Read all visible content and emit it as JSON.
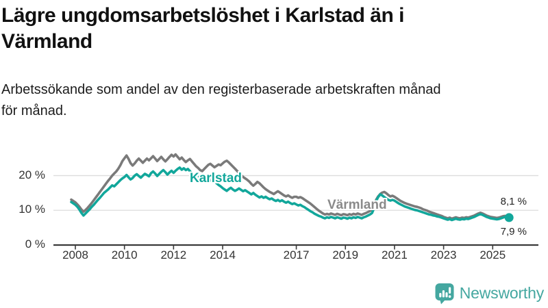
{
  "title": "Lägre ungdomsarbetslöshet i Karlstad än i\nVärmland",
  "subtitle": "Arbetssökande som andel av den registerbaserade arbetskraften månad\nför månad.",
  "branding": {
    "logo_text": "Newsworthy",
    "logo_color": "#44a7a0"
  },
  "colors": {
    "karlstad_line": "#12a79b",
    "varmland_line": "#7a7a7a",
    "varmland_label": "#8a8a8a",
    "axis": "#3a3a3a",
    "gridline": "#dcdcdc",
    "text": "#111111"
  },
  "chart_data": {
    "type": "line",
    "title": "Lägre ungdomsarbetslöshet i Karlstad än i Värmland",
    "subtitle": "Arbetssökande som andel av den registerbaserade arbetskraften månad för månad.",
    "unit": "%",
    "grid": "horizontal",
    "x_start": {
      "year": 2007,
      "month": 11
    },
    "x_end": {
      "year": 2025,
      "month": 9
    },
    "x_axis": {
      "ticks": [
        2008,
        2010,
        2012,
        2014,
        2017,
        2019,
        2021,
        2023,
        2025
      ]
    },
    "y_axis": {
      "range": [
        0,
        28
      ],
      "ticks": [
        {
          "value": 0,
          "label": "0 %"
        },
        {
          "value": 10,
          "label": "10 %"
        },
        {
          "value": 20,
          "label": "20 %"
        }
      ]
    },
    "series": [
      {
        "name": "Karlstad",
        "color": "#12a79b",
        "end_label": "7,9 %",
        "last_value": 7.9,
        "values": [
          12.4,
          12.0,
          11.6,
          11.0,
          10.2,
          9.2,
          8.5,
          9.1,
          9.7,
          10.3,
          11.0,
          11.6,
          12.3,
          13.0,
          13.6,
          14.3,
          15.0,
          15.5,
          16.0,
          16.6,
          17.2,
          16.9,
          17.5,
          18.1,
          18.7,
          19.2,
          19.6,
          20.2,
          19.5,
          18.9,
          19.3,
          20.0,
          20.4,
          19.9,
          19.4,
          20.0,
          20.5,
          20.2,
          19.8,
          20.7,
          21.2,
          20.6,
          19.9,
          20.5,
          21.1,
          21.6,
          21.0,
          20.3,
          20.9,
          21.4,
          20.8,
          21.4,
          21.9,
          22.3,
          21.7,
          22.1,
          21.6,
          21.9,
          21.3,
          20.6,
          19.9,
          20.4,
          20.0,
          19.4,
          18.9,
          19.3,
          19.7,
          19.1,
          18.6,
          19.0,
          18.4,
          17.8,
          17.3,
          16.9,
          16.4,
          16.0,
          15.6,
          16.1,
          16.5,
          16.0,
          15.6,
          15.9,
          16.3,
          15.9,
          15.5,
          15.8,
          15.4,
          15.0,
          14.6,
          15.0,
          14.5,
          14.1,
          13.7,
          14.0,
          13.6,
          13.9,
          13.5,
          13.2,
          13.4,
          13.0,
          12.7,
          13.0,
          12.6,
          12.9,
          12.5,
          12.2,
          12.5,
          12.1,
          11.8,
          12.0,
          11.7,
          11.4,
          11.6,
          11.2,
          10.9,
          10.5,
          10.1,
          9.7,
          9.4,
          9.0,
          8.7,
          8.4,
          8.2,
          7.9,
          7.7,
          8.0,
          7.8,
          8.1,
          7.9,
          7.7,
          8.0,
          7.8,
          7.6,
          7.9,
          7.8,
          7.6,
          7.9,
          7.7,
          8.0,
          7.8,
          8.1,
          7.9,
          7.7,
          8.0,
          8.2,
          8.5,
          8.8,
          9.2,
          10.6,
          12.6,
          13.8,
          14.6,
          14.3,
          13.8,
          13.4,
          13.0,
          12.8,
          13.0,
          12.8,
          12.4,
          12.0,
          11.7,
          11.4,
          11.1,
          10.9,
          10.7,
          10.5,
          10.3,
          10.1,
          10.0,
          9.8,
          9.6,
          9.4,
          9.2,
          9.0,
          8.8,
          8.7,
          8.5,
          8.4,
          8.2,
          8.1,
          7.9,
          7.7,
          7.5,
          7.3,
          7.5,
          7.2,
          7.4,
          7.6,
          7.4,
          7.3,
          7.5,
          7.4,
          7.6,
          7.5,
          7.7,
          7.9,
          8.1,
          8.4,
          8.7,
          8.9,
          8.7,
          8.4,
          8.1,
          7.9,
          7.7,
          7.6,
          7.5,
          7.4,
          7.5,
          7.7,
          7.9,
          8.1,
          8.0,
          7.9
        ]
      },
      {
        "name": "Värmland",
        "color": "#7a7a7a",
        "end_label": "8,1 %",
        "last_value": 8.1,
        "values": [
          13.1,
          12.7,
          12.3,
          11.7,
          11.0,
          10.2,
          9.6,
          10.1,
          10.7,
          11.4,
          12.1,
          12.9,
          13.7,
          14.5,
          15.3,
          16.1,
          16.9,
          17.7,
          18.5,
          19.2,
          20.0,
          20.6,
          21.2,
          22.0,
          23.0,
          24.2,
          25.0,
          25.8,
          24.8,
          23.6,
          22.9,
          23.5,
          24.3,
          24.9,
          24.3,
          23.7,
          24.3,
          24.9,
          24.4,
          25.0,
          25.6,
          24.9,
          24.2,
          24.8,
          25.4,
          24.7,
          24.1,
          24.7,
          25.4,
          26.0,
          25.5,
          26.1,
          25.4,
          24.7,
          25.2,
          24.5,
          23.9,
          24.4,
          24.8,
          24.1,
          23.4,
          22.7,
          22.2,
          21.6,
          21.3,
          21.9,
          22.5,
          23.1,
          23.4,
          22.9,
          22.4,
          22.8,
          23.2,
          23.0,
          23.5,
          24.0,
          24.3,
          23.8,
          23.2,
          22.6,
          22.0,
          21.4,
          20.8,
          20.2,
          19.6,
          19.2,
          18.8,
          18.3,
          17.6,
          17.1,
          17.6,
          18.2,
          17.8,
          17.2,
          16.6,
          16.1,
          15.7,
          15.3,
          15.0,
          14.7,
          15.1,
          15.5,
          15.1,
          14.7,
          14.3,
          14.0,
          14.3,
          13.9,
          13.6,
          13.9,
          13.9,
          13.6,
          13.8,
          13.5,
          13.1,
          12.7,
          12.3,
          11.9,
          11.4,
          10.9,
          10.4,
          9.9,
          9.5,
          9.1,
          8.8,
          9.0,
          8.8,
          9.1,
          8.9,
          8.7,
          9.0,
          8.8,
          8.6,
          8.9,
          8.8,
          8.6,
          8.9,
          8.7,
          9.0,
          8.8,
          9.1,
          8.9,
          8.7,
          9.0,
          9.2,
          9.5,
          9.8,
          10.2,
          11.4,
          13.0,
          14.0,
          14.7,
          15.1,
          15.3,
          14.9,
          14.4,
          14.0,
          14.2,
          13.9,
          13.5,
          13.1,
          12.7,
          12.4,
          12.1,
          11.9,
          11.7,
          11.5,
          11.3,
          11.1,
          11.0,
          10.8,
          10.6,
          10.3,
          10.1,
          9.9,
          9.6,
          9.4,
          9.2,
          9.0,
          8.8,
          8.6,
          8.4,
          8.1,
          7.9,
          7.7,
          7.9,
          7.6,
          7.8,
          8.0,
          7.8,
          7.7,
          7.9,
          7.8,
          8.0,
          7.9,
          8.1,
          8.3,
          8.5,
          8.8,
          9.1,
          9.3,
          9.1,
          8.8,
          8.5,
          8.3,
          8.1,
          8.0,
          7.9,
          7.8,
          7.9,
          8.1,
          8.3,
          8.4,
          8.2,
          8.1
        ]
      }
    ]
  }
}
